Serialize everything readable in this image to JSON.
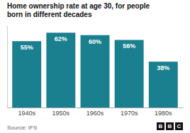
{
  "chart_data": {
    "type": "bar",
    "title": [
      "Home ownership rate at age 30, for people",
      "born in different decades"
    ],
    "categories": [
      "1940s",
      "1950s",
      "1960s",
      "1970s",
      "1980s"
    ],
    "values": [
      55,
      62,
      60,
      56,
      38
    ],
    "value_labels": [
      "55%",
      "62%",
      "60%",
      "56%",
      "38%"
    ],
    "data_labels": true,
    "color": "#1a7f8e",
    "ylim": [
      0,
      68
    ],
    "tick_labels": "x",
    "annotations": [
      "Source: IFS",
      "BBC"
    ]
  }
}
